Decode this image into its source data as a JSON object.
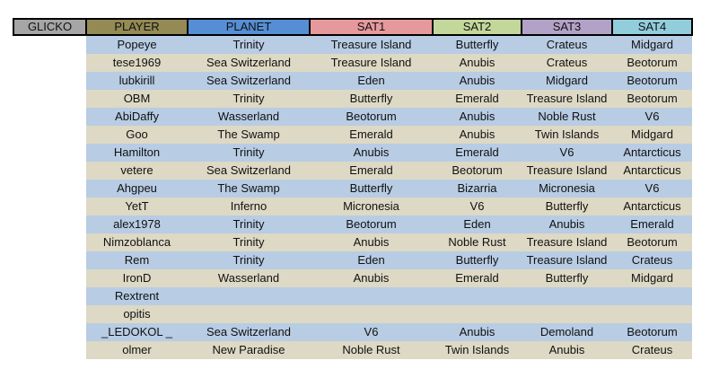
{
  "header": {
    "glicko": "GLICKO",
    "player": "PLAYER",
    "planet": "PLANET",
    "sat1": "SAT1",
    "sat2": "SAT2",
    "sat3": "SAT3",
    "sat4": "SAT4"
  },
  "colors": {
    "glicko_header": "#a6a6a6",
    "player_header": "#948a54",
    "planet_header": "#558ed5",
    "sat1_header": "#e6999d",
    "sat2_header": "#c4d79b",
    "sat3_header": "#b3a2c7",
    "sat4_header": "#92cddc",
    "row_blue": "#b8cce4",
    "row_tan": "#ddd9c4"
  },
  "rows": [
    [
      "Popeye",
      "Trinity",
      "Treasure Island",
      "Butterfly",
      "Crateus",
      "Midgard"
    ],
    [
      "tese1969",
      "Sea Switzerland",
      "Treasure Island",
      "Anubis",
      "Crateus",
      "Beotorum"
    ],
    [
      "lubkirill",
      "Sea Switzerland",
      "Eden",
      "Anubis",
      "Midgard",
      "Beotorum"
    ],
    [
      "OBM",
      "Trinity",
      "Butterfly",
      "Emerald",
      "Treasure Island",
      "Beotorum"
    ],
    [
      "AbiDaffy",
      "Wasserland",
      "Beotorum",
      "Anubis",
      "Noble Rust",
      "V6"
    ],
    [
      "Goo",
      "The Swamp",
      "Emerald",
      "Anubis",
      "Twin Islands",
      "Midgard"
    ],
    [
      "Hamilton",
      "Trinity",
      "Anubis",
      "Emerald",
      "V6",
      "Antarcticus"
    ],
    [
      "vetere",
      "Sea Switzerland",
      "Emerald",
      "Beotorum",
      "Treasure Island",
      "Antarcticus"
    ],
    [
      "Ahgpeu",
      "The Swamp",
      "Butterfly",
      "Bizarria",
      "Micronesia",
      "V6"
    ],
    [
      "YetT",
      "Inferno",
      "Micronesia",
      "V6",
      "Butterfly",
      "Antarcticus"
    ],
    [
      "alex1978",
      "Trinity",
      "Beotorum",
      "Eden",
      "Anubis",
      "Emerald"
    ],
    [
      "Nimzoblanca",
      "Trinity",
      "Anubis",
      "Noble Rust",
      "Treasure Island",
      "Beotorum"
    ],
    [
      "Rem",
      "Trinity",
      "Eden",
      "Butterfly",
      "Treasure Island",
      "Crateus"
    ],
    [
      "IronD",
      "Wasserland",
      "Anubis",
      "Emerald",
      "Butterfly",
      "Midgard"
    ],
    [
      "Rextrent",
      "",
      "",
      "",
      "",
      ""
    ],
    [
      "opitis",
      "",
      "",
      "",
      "",
      ""
    ],
    [
      "_LEDOKOL _",
      "Sea Switzerland",
      "V6",
      "Anubis",
      "Demoland",
      "Beotorum"
    ],
    [
      "olmer",
      "New Paradise",
      "Noble Rust",
      "Twin Islands",
      "Anubis",
      "Crateus"
    ]
  ]
}
